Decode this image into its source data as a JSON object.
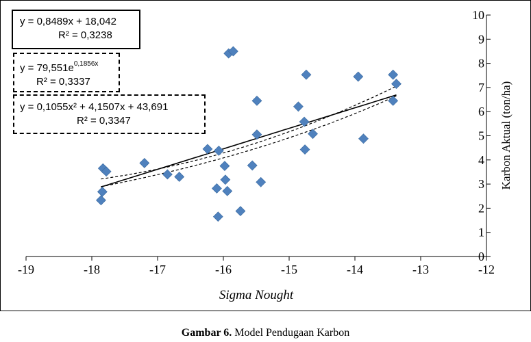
{
  "caption": {
    "label": "Gambar 6.",
    "text": " Model Pendugaan Karbon"
  },
  "trendlines": {
    "linear": {
      "equation": "y = 0,8489x + 18,042",
      "r2": "R² = 0,3238"
    },
    "exponential": {
      "equation_base": "y = 79,551e",
      "equation_exponent": "0,1856x",
      "r2": "R² = 0,3337"
    },
    "polynomial": {
      "equation": "y = 0,1055x² + 4,1507x + 43,691",
      "r2": "R² = 0,3347"
    }
  },
  "colors": {
    "marker": "#4f81bd",
    "trendline": "#000000",
    "axis": "#000000"
  },
  "chart_data": {
    "type": "scatter",
    "title": "",
    "xlabel": "Sigma Nought",
    "ylabel": "Karbon Aktual (ton/ha)",
    "xlim": [
      -19,
      -12
    ],
    "ylim": [
      0,
      10
    ],
    "x_ticks": [
      "-19",
      "-18",
      "-17",
      "-16",
      "-15",
      "-14",
      "-13",
      "-12"
    ],
    "y_ticks": [
      "0",
      "1",
      "2",
      "3",
      "4",
      "5",
      "6",
      "7",
      "8",
      "9",
      "10"
    ],
    "y_axis_side": "right",
    "grid": false,
    "marker": "diamond",
    "series": [
      {
        "points": [
          [
            -17.83,
            3.65
          ],
          [
            -17.78,
            3.52
          ],
          [
            -17.84,
            2.68
          ],
          [
            -17.86,
            2.33
          ],
          [
            -17.2,
            5.85
          ],
          [
            -17.2,
            3.87
          ],
          [
            -16.85,
            3.4
          ],
          [
            -16.67,
            3.3
          ],
          [
            -16.24,
            4.45
          ],
          [
            -16.07,
            4.38
          ],
          [
            -16.1,
            2.82
          ],
          [
            -16.08,
            1.65
          ],
          [
            -15.98,
            3.75
          ],
          [
            -15.97,
            3.18
          ],
          [
            -15.94,
            2.71
          ],
          [
            -15.92,
            8.41
          ],
          [
            -15.85,
            8.5
          ],
          [
            -15.74,
            1.88
          ],
          [
            -15.56,
            3.77
          ],
          [
            -15.49,
            6.45
          ],
          [
            -15.49,
            5.05
          ],
          [
            -15.43,
            3.08
          ],
          [
            -14.86,
            6.21
          ],
          [
            -14.77,
            5.58
          ],
          [
            -14.76,
            4.43
          ],
          [
            -14.74,
            7.53
          ],
          [
            -14.64,
            5.08
          ],
          [
            -13.95,
            7.45
          ],
          [
            -13.87,
            4.88
          ],
          [
            -13.42,
            7.53
          ],
          [
            -13.42,
            6.45
          ],
          [
            -13.37,
            7.15
          ]
        ]
      }
    ],
    "trendlines": [
      {
        "kind": "linear",
        "style": "solid",
        "a": 0.8489,
        "b": 18.042
      },
      {
        "kind": "exponential",
        "style": "dashed",
        "a": 79.551,
        "k": 0.1856
      },
      {
        "kind": "polynomial",
        "style": "dashed",
        "a": 0.1055,
        "b": 4.1507,
        "c": 43.691
      }
    ]
  }
}
